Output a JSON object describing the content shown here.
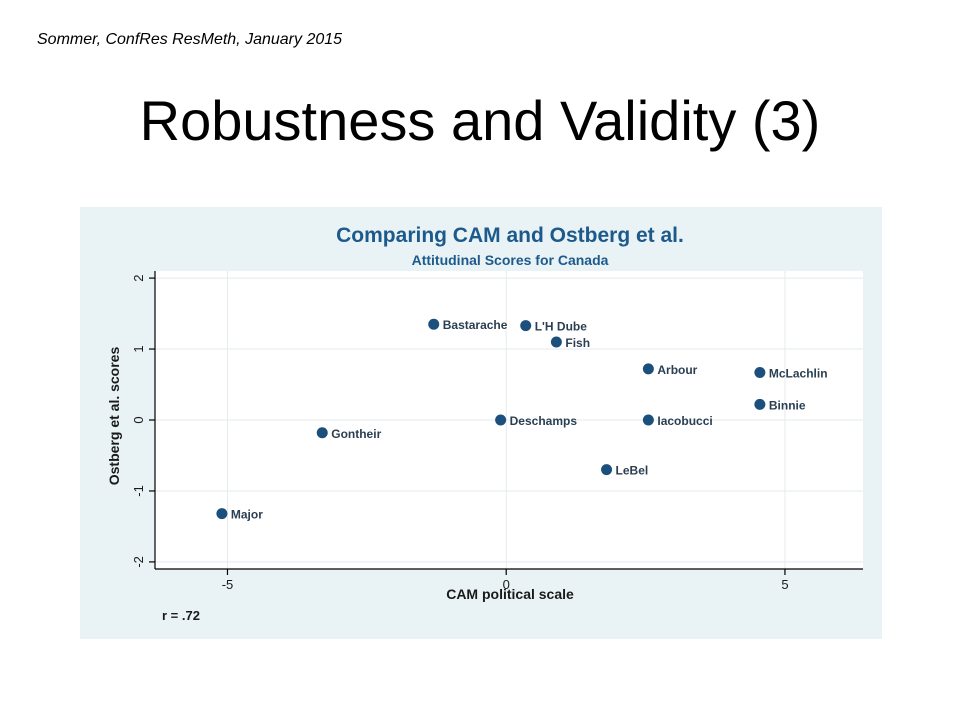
{
  "header_note": "Sommer, ConfRes ResMeth, January 2015",
  "slide_title": "Robustness and Validity (3)",
  "chart_data": {
    "type": "scatter",
    "title": "Comparing CAM and Ostberg et al.",
    "subtitle": "Attitudinal Scores for Canada",
    "xlabel": "CAM political scale",
    "ylabel": "Ostberg et al. scores",
    "xlim": [
      -6.3,
      6.4
    ],
    "ylim": [
      -2.1,
      2.1
    ],
    "x_ticks": [
      -5,
      0,
      5
    ],
    "y_ticks": [
      -2,
      -1,
      0,
      1,
      2
    ],
    "grid": true,
    "note": "r = .72",
    "colors": {
      "point": "#1b4f7c",
      "panel": "#e9f2f5",
      "plot_bg": "#ffffff",
      "grid": "#e3ebee",
      "title": "#1d5a8c"
    },
    "points": [
      {
        "label": "Bastarache",
        "x": -1.3,
        "y": 1.35
      },
      {
        "label": "L'H Dube",
        "x": 0.35,
        "y": 1.33
      },
      {
        "label": "Fish",
        "x": 0.9,
        "y": 1.1
      },
      {
        "label": "Arbour",
        "x": 2.55,
        "y": 0.72
      },
      {
        "label": "McLachlin",
        "x": 4.55,
        "y": 0.67
      },
      {
        "label": "Binnie",
        "x": 4.55,
        "y": 0.22
      },
      {
        "label": "Gontheir",
        "x": -3.3,
        "y": -0.18
      },
      {
        "label": "Deschamps",
        "x": -0.1,
        "y": 0.0
      },
      {
        "label": "Iacobucci",
        "x": 2.55,
        "y": 0.0
      },
      {
        "label": "LeBel",
        "x": 1.8,
        "y": -0.7
      },
      {
        "label": "Major",
        "x": -5.1,
        "y": -1.32
      }
    ]
  }
}
